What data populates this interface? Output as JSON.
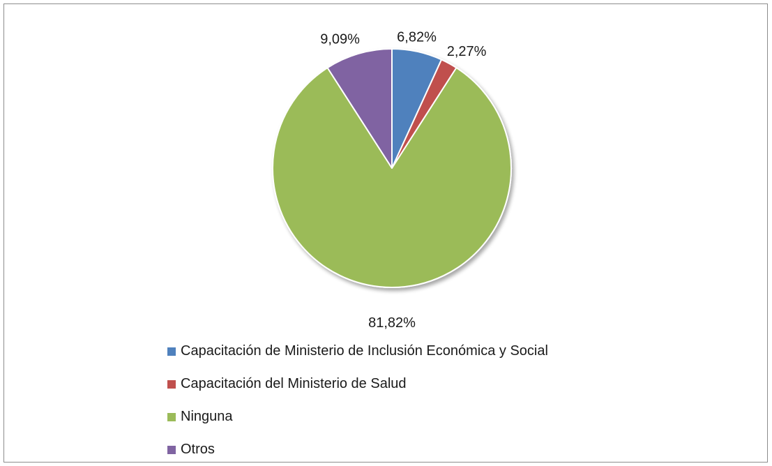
{
  "chart_data": {
    "type": "pie",
    "title": "",
    "slices": [
      {
        "label": "Capacitación de Ministerio de Inclusión Económica y Social",
        "value": 6.82,
        "display": "6,82%",
        "color": "#4f81bd"
      },
      {
        "label": "Capacitación del Ministerio de Salud",
        "value": 2.27,
        "display": "2,27%",
        "color": "#c0504d"
      },
      {
        "label": "Ninguna",
        "value": 81.82,
        "display": "81,82%",
        "color": "#9bbb59"
      },
      {
        "label": "Otros",
        "value": 9.09,
        "display": "9,09%",
        "color": "#8064a2"
      }
    ],
    "legend_position": "bottom",
    "data_labels": "outside"
  }
}
